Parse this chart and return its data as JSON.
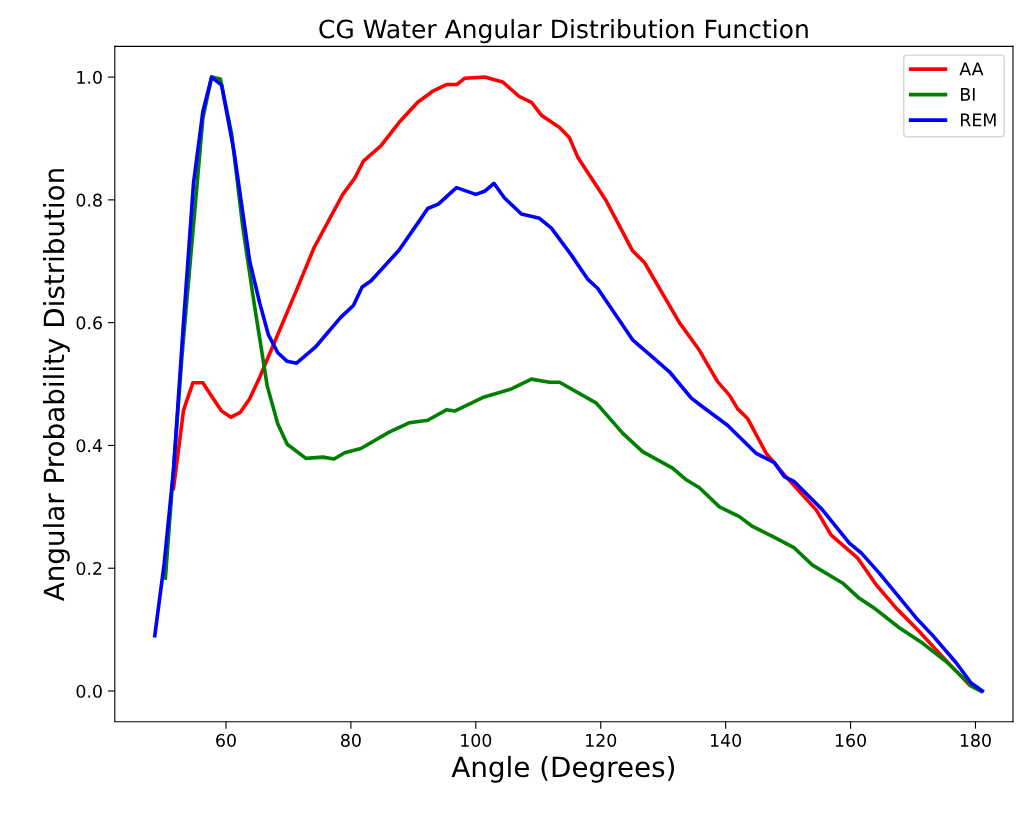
{
  "chart_data": {
    "type": "line",
    "title": "CG Water Angular Distribution Function",
    "xlabel": "Angle (Degrees)",
    "ylabel": "Angular Probability Distribution",
    "xlim": [
      42.2,
      186
    ],
    "xticks": [
      60,
      80,
      100,
      120,
      140,
      160,
      180
    ],
    "ylim": [
      -0.05,
      1.05
    ],
    "yticks": [
      {
        "value": 0,
        "label": "0.0"
      },
      0.2,
      0.4,
      0.6,
      0.8,
      {
        "value": 1,
        "label": "1.0"
      }
    ],
    "grid": false,
    "legend": "top right",
    "marker": "none",
    "line_style": "solid",
    "series": [
      {
        "name": "AA",
        "color": "#ff0000",
        "x": [
          51.6,
          53.2,
          54.7,
          56.3,
          57.7,
          59.3,
          60.8,
          62.3,
          63.8,
          65.4,
          71.3,
          74.1,
          78.7,
          80.6,
          82,
          84.8,
          87.7,
          90.7,
          93.1,
          95.4,
          97,
          98.2,
          101.4,
          104.3,
          107,
          108.9,
          110.5,
          113.4,
          115,
          116.3,
          120.9,
          125.1,
          127,
          132.6,
          135.8,
          138.7,
          140.6,
          141.9,
          143.5,
          146.5,
          149.4,
          154.5,
          156.9,
          161.1,
          164.1,
          167.3,
          171,
          174.7,
          179,
          180.9
        ],
        "values": [
          0.33,
          0.457,
          0.502,
          0.502,
          0.48,
          0.456,
          0.446,
          0.454,
          0.476,
          0.511,
          0.653,
          0.722,
          0.809,
          0.835,
          0.863,
          0.888,
          0.926,
          0.959,
          0.977,
          0.988,
          0.988,
          0.998,
          1.0,
          0.992,
          0.968,
          0.959,
          0.938,
          0.918,
          0.901,
          0.87,
          0.798,
          0.717,
          0.698,
          0.6,
          0.555,
          0.504,
          0.482,
          0.46,
          0.444,
          0.387,
          0.352,
          0.295,
          0.254,
          0.217,
          0.173,
          0.135,
          0.097,
          0.056,
          0.01,
          0.0
        ]
      },
      {
        "name": "BI",
        "color": "#008000",
        "x": [
          50.3,
          53.0,
          56.3,
          57.7,
          59.1,
          60.9,
          62.7,
          64.5,
          66.6,
          68.3,
          69.8,
          72.8,
          75.5,
          77.3,
          79,
          81.6,
          86.2,
          89.4,
          92.3,
          95.3,
          96.6,
          101.1,
          105.7,
          108.9,
          111.8,
          113.4,
          119.3,
          123.5,
          126.7,
          131.5,
          133.7,
          135.8,
          139,
          142.2,
          144.3,
          147.5,
          151,
          153.9,
          158.7,
          161.4,
          163.8,
          167.8,
          171.5,
          175.3,
          179.5,
          180.9
        ],
        "values": [
          0.184,
          0.551,
          0.933,
          1.0,
          0.997,
          0.908,
          0.755,
          0.632,
          0.497,
          0.435,
          0.402,
          0.379,
          0.381,
          0.378,
          0.388,
          0.395,
          0.422,
          0.437,
          0.441,
          0.458,
          0.456,
          0.478,
          0.492,
          0.508,
          0.503,
          0.503,
          0.469,
          0.42,
          0.39,
          0.363,
          0.344,
          0.331,
          0.3,
          0.284,
          0.268,
          0.252,
          0.233,
          0.205,
          0.176,
          0.151,
          0.135,
          0.103,
          0.078,
          0.048,
          0.007,
          0.0
        ]
      },
      {
        "name": "REM",
        "color": "#0000ff",
        "x": [
          48.6,
          50.1,
          51.6,
          53.2,
          54.8,
          56.3,
          57.7,
          59.3,
          61.3,
          63.8,
          65.4,
          66.8,
          68.3,
          69.8,
          71.3,
          74.3,
          78.4,
          80.4,
          81.8,
          83.2,
          87.7,
          90.9,
          92.3,
          94,
          96.9,
          100,
          101.4,
          102.9,
          104.6,
          107.3,
          110.2,
          112.1,
          115.3,
          117.9,
          119.5,
          125.1,
          128.3,
          131,
          134.5,
          136.3,
          140.3,
          144.9,
          147.8,
          149.4,
          151,
          155.5,
          159.8,
          161.7,
          164.6,
          170.5,
          173.1,
          176.9,
          179.3,
          181.1
        ],
        "values": [
          0.09,
          0.207,
          0.36,
          0.6,
          0.827,
          0.944,
          1.0,
          0.987,
          0.878,
          0.7,
          0.632,
          0.58,
          0.551,
          0.537,
          0.534,
          0.56,
          0.609,
          0.628,
          0.658,
          0.668,
          0.718,
          0.765,
          0.786,
          0.793,
          0.82,
          0.809,
          0.814,
          0.827,
          0.803,
          0.777,
          0.77,
          0.754,
          0.71,
          0.671,
          0.656,
          0.572,
          0.544,
          0.52,
          0.477,
          0.463,
          0.433,
          0.387,
          0.372,
          0.349,
          0.341,
          0.295,
          0.241,
          0.225,
          0.192,
          0.119,
          0.091,
          0.046,
          0.013,
          0.0
        ]
      }
    ]
  }
}
